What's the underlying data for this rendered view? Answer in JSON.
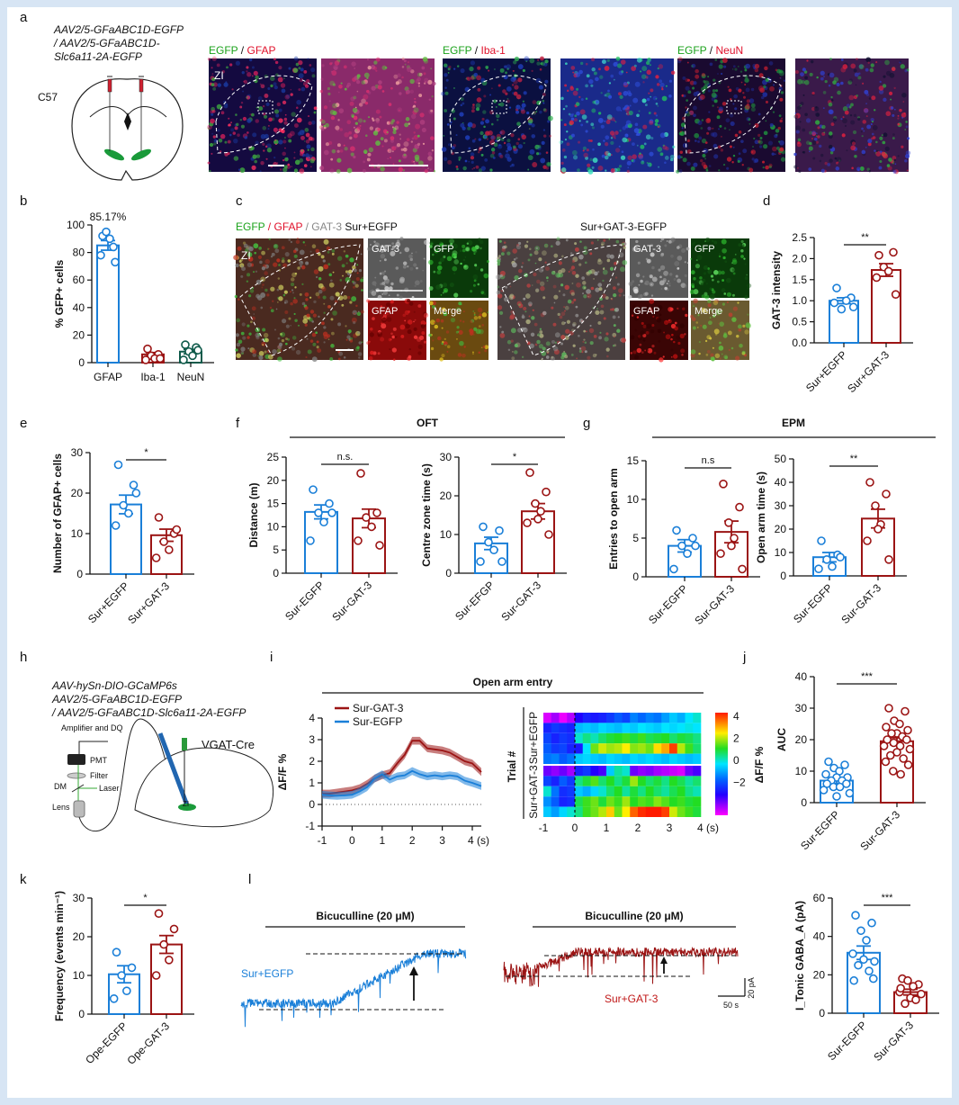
{
  "colors": {
    "egfp_blue": "#1a7fd8",
    "gat3_red": "#9b1414",
    "neun_green": "#0f5a4a",
    "egfp_text": "#1aa21a",
    "red_text": "#e0102a",
    "background": "#d7e5f4"
  },
  "panel_letters": [
    "a",
    "b",
    "c",
    "d",
    "e",
    "f",
    "g",
    "h",
    "i",
    "j",
    "k",
    "l"
  ],
  "panel_a": {
    "virus_lines": [
      "AAV2/5-GFaABC1D-EGFP",
      "/ AAV2/5-GFaABC1D-",
      "Slc6a11-2A-EGFP"
    ],
    "strain": "C57",
    "region": "ZI",
    "stains": [
      {
        "green": "EGFP",
        "sep": " / ",
        "red": "GFAP"
      },
      {
        "green": "EGFP",
        "sep": " / ",
        "red": "Iba-1"
      },
      {
        "green": "EGFP",
        "sep": " / ",
        "red": "NeuN"
      }
    ]
  },
  "panel_c": {
    "legend": {
      "green": "EGFP",
      "sep1": " / ",
      "red": "GFAP",
      "sep2": " / ",
      "gray": "GAT-3",
      "group": " Sur+EGFP"
    },
    "group2": "Sur+GAT-3-EGFP",
    "region": "ZI",
    "subpanels": [
      "GAT-3",
      "GFP",
      "GFAP",
      "Merge"
    ]
  },
  "panel_f_title": "OFT",
  "panel_g_title": "EPM",
  "panel_h": {
    "virus_lines": [
      "AAV-hySn-DIO-GCaMP6s",
      "AAV2/5-GFaABC1D-EGFP",
      "/ AAV2/5-GFaABC1D-Slc6a11-2A-EGFP"
    ],
    "mouse": "VGAT-Cre",
    "labels": {
      "amp": "Amplifier and DQ",
      "pmt": "PMT",
      "filter": "Filter",
      "dm": "DM",
      "laser": "Laser",
      "lens": "Lens",
      "zi": "ZI"
    }
  },
  "panel_l": {
    "drug": "Bicuculline (20 μM)",
    "trace1": "Sur+EGFP",
    "trace2": "Sur+GAT-3",
    "scale_time": "50 s",
    "scale_current": "20 pA"
  },
  "chart_data": [
    {
      "panel": "b",
      "type": "bar",
      "categories": [
        "GFAP",
        "Iba-1",
        "NeuN"
      ],
      "means": [
        85.17,
        6,
        8
      ],
      "sem": [
        3.5,
        1.3,
        1.6
      ],
      "points": [
        [
          92,
          84,
          95,
          90,
          78,
          73
        ],
        [
          10,
          6,
          5,
          3,
          2,
          3
        ],
        [
          13,
          11,
          8,
          5,
          2,
          9
        ]
      ],
      "ylabel": "% GFP+ cells",
      "ylim": [
        0,
        100
      ],
      "yticks": [
        0,
        20,
        40,
        60,
        80,
        100
      ],
      "annotation": "85.17%",
      "colors": [
        "#1a7fd8",
        "#9b1414",
        "#0f5a4a"
      ]
    },
    {
      "panel": "d",
      "type": "bar",
      "categories": [
        "Sur+EGFP",
        "Sur+GAT-3"
      ],
      "means": [
        1.0,
        1.73
      ],
      "sem": [
        0.07,
        0.15
      ],
      "points": [
        [
          1.3,
          1.07,
          0.8,
          1.0,
          0.95,
          0.85
        ],
        [
          2.08,
          2.15,
          1.8,
          1.7,
          1.55,
          1.15
        ]
      ],
      "ylabel": "GAT-3 intensity",
      "ylim": [
        0,
        2.5
      ],
      "yticks": [
        "0.0",
        "0.5",
        "1.0",
        "1.5",
        "2.0",
        "2.5"
      ],
      "significance": "**",
      "colors": [
        "#1a7fd8",
        "#9b1414"
      ]
    },
    {
      "panel": "e",
      "type": "bar",
      "categories": [
        "Sur+EGFP",
        "Sur+GAT-3"
      ],
      "means": [
        17.2,
        9.6
      ],
      "sem": [
        2.3,
        1.5
      ],
      "points": [
        [
          27,
          22,
          17,
          15,
          12,
          20
        ],
        [
          14,
          10,
          8,
          6,
          4,
          11
        ]
      ],
      "ylabel": "Number of GFAP+ cells",
      "ylim": [
        0,
        30
      ],
      "yticks": [
        0,
        10,
        20,
        30
      ],
      "significance": "*",
      "colors": [
        "#1a7fd8",
        "#9b1414"
      ]
    },
    {
      "panel": "f1",
      "type": "bar",
      "categories": [
        "Sur-EGFP",
        "Sur-GAT-3"
      ],
      "means": [
        13.2,
        11.8
      ],
      "sem": [
        1.5,
        2.0
      ],
      "points": [
        [
          18,
          15,
          13,
          11,
          7,
          13
        ],
        [
          21.5,
          13,
          12,
          10,
          7,
          6
        ]
      ],
      "ylabel": "Distance (m)",
      "ylim": [
        0,
        25
      ],
      "yticks": [
        0,
        5,
        10,
        15,
        20,
        25
      ],
      "significance": "n.s.",
      "colors": [
        "#1a7fd8",
        "#9b1414"
      ]
    },
    {
      "panel": "f2",
      "type": "bar",
      "categories": [
        "Sur-EFGP",
        "Sur-GAT-3"
      ],
      "means": [
        7.7,
        16
      ],
      "sem": [
        1.6,
        2.0
      ],
      "points": [
        [
          12,
          11,
          8,
          6,
          3,
          3
        ],
        [
          26,
          21,
          18,
          16,
          13,
          10,
          14
        ]
      ],
      "ylabel": "Centre zone time (s)",
      "ylim": [
        0,
        30
      ],
      "yticks": [
        0,
        10,
        20,
        30
      ],
      "significance": "*",
      "colors": [
        "#1a7fd8",
        "#9b1414"
      ]
    },
    {
      "panel": "g1",
      "type": "bar",
      "categories": [
        "Sur-EGFP",
        "Sur-GAT-3"
      ],
      "means": [
        4,
        5.8
      ],
      "sem": [
        0.8,
        1.4
      ],
      "points": [
        [
          6,
          5,
          4,
          3,
          1,
          4
        ],
        [
          12,
          9,
          7,
          5,
          3,
          1,
          4
        ]
      ],
      "ylabel": "Entries to open arm",
      "ylim": [
        0,
        15
      ],
      "yticks": [
        0,
        5,
        10,
        15
      ],
      "significance": "n.s",
      "colors": [
        "#1a7fd8",
        "#9b1414"
      ]
    },
    {
      "panel": "g2",
      "type": "bar",
      "categories": [
        "Sur-EGFP",
        "Sur-GAT-3"
      ],
      "means": [
        8,
        24.5
      ],
      "sem": [
        2,
        4
      ],
      "points": [
        [
          15,
          9,
          7,
          4,
          3,
          8
        ],
        [
          40,
          35,
          30,
          22,
          15,
          7,
          20
        ]
      ],
      "ylabel": "Open arm time (s)",
      "ylim": [
        0,
        50
      ],
      "yticks": [
        0,
        10,
        20,
        30,
        40,
        50
      ],
      "significance": "**",
      "colors": [
        "#1a7fd8",
        "#9b1414"
      ]
    },
    {
      "panel": "i-line",
      "type": "line",
      "title": "Open arm entry",
      "ylabel": "ΔF/F %",
      "xlabel_unit": "(s)",
      "xticks": [
        "-1",
        "0",
        "1",
        "2",
        "3",
        "4 (s)"
      ],
      "yticks": [
        -1,
        0,
        1,
        2,
        3,
        4
      ],
      "xlim": [
        -1,
        4.3
      ],
      "ylim": [
        -1,
        4
      ],
      "x": [
        -1,
        -0.75,
        -0.5,
        -0.25,
        0,
        0.25,
        0.5,
        0.75,
        1,
        1.25,
        1.5,
        1.75,
        2,
        2.25,
        2.5,
        2.75,
        3,
        3.25,
        3.5,
        3.75,
        4,
        4.3
      ],
      "series": [
        {
          "name": "Sur-GAT-3",
          "color": "#9b1414",
          "values": [
            0.5,
            0.5,
            0.55,
            0.6,
            0.65,
            0.75,
            0.95,
            1.2,
            1.35,
            1.45,
            1.9,
            2.3,
            2.95,
            2.95,
            2.6,
            2.55,
            2.5,
            2.4,
            2.2,
            2.0,
            1.9,
            1.5
          ]
        },
        {
          "name": "Sur-EGFP",
          "color": "#1a7fd8",
          "values": [
            0.45,
            0.42,
            0.4,
            0.42,
            0.45,
            0.6,
            0.8,
            1.2,
            1.4,
            1.15,
            1.3,
            1.35,
            1.55,
            1.4,
            1.3,
            1.35,
            1.3,
            1.35,
            1.3,
            1.1,
            1.0,
            0.85
          ]
        }
      ]
    },
    {
      "panel": "i-heatmap",
      "type": "heatmap",
      "ylabel": "Trial #",
      "groups": [
        "Sur+EGFP",
        "Sur+GAT-3"
      ],
      "xticks": [
        "-1",
        "0",
        "1",
        "2",
        "3",
        "4 (s)"
      ],
      "colorbar_ticks": [
        "4",
        "2",
        "0",
        "−2"
      ],
      "colorbar_label": "ΔF/F %",
      "range": [
        -2,
        4
      ],
      "rows": [
        [
          -1.8,
          -1.5,
          -1.9,
          -1.6,
          -0.8,
          -0.5,
          -0.6,
          -0.5,
          -0.3,
          0,
          -0.2,
          0.3,
          0.1,
          0.3,
          0.2,
          0.5,
          0.8,
          0.6,
          1.0,
          1.2
        ],
        [
          -0.5,
          -0.3,
          -0.4,
          -0.5,
          0.7,
          0.8,
          0.7,
          0.9,
          0.8,
          0.7,
          0.9,
          0.8,
          1.0,
          0.9,
          0.8,
          1.0,
          0.9,
          1.0,
          1.1,
          1.0
        ],
        [
          -0.2,
          -0.5,
          -0.3,
          -0.4,
          1.2,
          1.5,
          1.3,
          1.6,
          1.8,
          1.9,
          2.0,
          1.8,
          2.0,
          1.7,
          1.8,
          1.9,
          1.6,
          1.8,
          1.7,
          1.5
        ],
        [
          0,
          -0.3,
          -0.2,
          -0.5,
          -0.6,
          1.0,
          2.2,
          2.6,
          2.4,
          2.5,
          2.8,
          2.3,
          2.4,
          2.2,
          2.9,
          3.2,
          3.8,
          2.5,
          2.0,
          1.6
        ],
        [
          0.2,
          0.3,
          0,
          0.2,
          0.8,
          0.9,
          0.8,
          0.7,
          0.9,
          0.8,
          0.7,
          0.9,
          0.8,
          0.9,
          0.8,
          0.7,
          0.9,
          0.8,
          0.7,
          0.8
        ],
        [
          -1.2,
          -1.4,
          -1.2,
          -1.5,
          -0.5,
          -0.3,
          -0.8,
          -1.0,
          0.8,
          1.4,
          1.2,
          -1.2,
          -1.4,
          -1.3,
          -1.5,
          -1.6,
          -1.7,
          -1.8,
          -1.2,
          -1.0
        ],
        [
          -0.2,
          -0.5,
          0,
          -0.3,
          1.5,
          1.8,
          2.1,
          1.6,
          1.9,
          1.5,
          1.8,
          2.4,
          1.9,
          1.6,
          1.8,
          1.5,
          1.9,
          1.7,
          1.4,
          1.6
        ],
        [
          1.2,
          0.2,
          -0.4,
          -0.3,
          0.8,
          0.6,
          0.9,
          1.2,
          1.6,
          1.9,
          1.4,
          1.8,
          1.5,
          1.9,
          1.6,
          1.4,
          1.7,
          1.9,
          1.5,
          1.3
        ],
        [
          0.4,
          0,
          -0.5,
          -0.4,
          1.7,
          2.0,
          2.2,
          1.8,
          2.2,
          2.0,
          2.4,
          1.9,
          2.1,
          2.0,
          2.3,
          2.1,
          1.9,
          2.0,
          1.8,
          1.9
        ],
        [
          0.8,
          0.5,
          0.9,
          1.2,
          1.5,
          2.0,
          2.2,
          2.5,
          3.0,
          2.2,
          2.8,
          3.6,
          3.9,
          4.2,
          4.1,
          3.8,
          2.6,
          2.2,
          2.0,
          1.8
        ]
      ]
    },
    {
      "panel": "j",
      "type": "bar",
      "categories": [
        "Sur-EGFP",
        "Sur-GAT-3"
      ],
      "means": [
        7,
        19.5
      ],
      "sem": [
        0.9,
        1.1
      ],
      "points": [
        [
          13,
          12,
          11,
          10,
          9,
          8,
          8,
          7,
          7,
          6,
          6,
          5,
          5,
          4,
          3,
          2
        ],
        [
          30,
          29,
          26,
          25,
          24,
          23,
          22,
          22,
          21,
          20,
          20,
          19,
          18,
          18,
          17,
          16,
          15,
          14,
          13,
          12,
          10,
          9
        ]
      ],
      "ylabel": "AUC",
      "ylim": [
        0,
        40
      ],
      "yticks": [
        0,
        10,
        20,
        30,
        40
      ],
      "significance": "***",
      "colors": [
        "#1a7fd8",
        "#9b1414"
      ]
    },
    {
      "panel": "k",
      "type": "bar",
      "categories": [
        "Ope-EGFP",
        "Ope-GAT-3"
      ],
      "means": [
        10.3,
        18
      ],
      "sem": [
        2.2,
        2.3
      ],
      "points": [
        [
          16,
          12,
          10,
          6,
          4
        ],
        [
          26,
          22,
          18,
          14,
          10
        ]
      ],
      "ylabel": "Frequency (events min⁻¹)",
      "ylim": [
        0,
        30
      ],
      "yticks": [
        0,
        10,
        20,
        30
      ],
      "significance": "*",
      "colors": [
        "#1a7fd8",
        "#9b1414"
      ]
    },
    {
      "panel": "l",
      "type": "bar",
      "categories": [
        "Sur-EGFP",
        "Sur-GAT-3"
      ],
      "means": [
        31.5,
        11
      ],
      "sem": [
        3.5,
        1.5
      ],
      "points": [
        [
          51,
          47,
          43,
          38,
          31,
          27,
          28,
          25,
          22,
          17,
          18
        ],
        [
          18,
          15,
          17,
          14,
          11,
          10,
          8,
          5,
          7,
          13
        ]
      ],
      "ylabel": "I_Tonic GABA_A (pA)",
      "ylim": [
        0,
        60
      ],
      "yticks": [
        0,
        20,
        40,
        60
      ],
      "significance": "***",
      "colors": [
        "#1a7fd8",
        "#9b1414"
      ]
    }
  ]
}
